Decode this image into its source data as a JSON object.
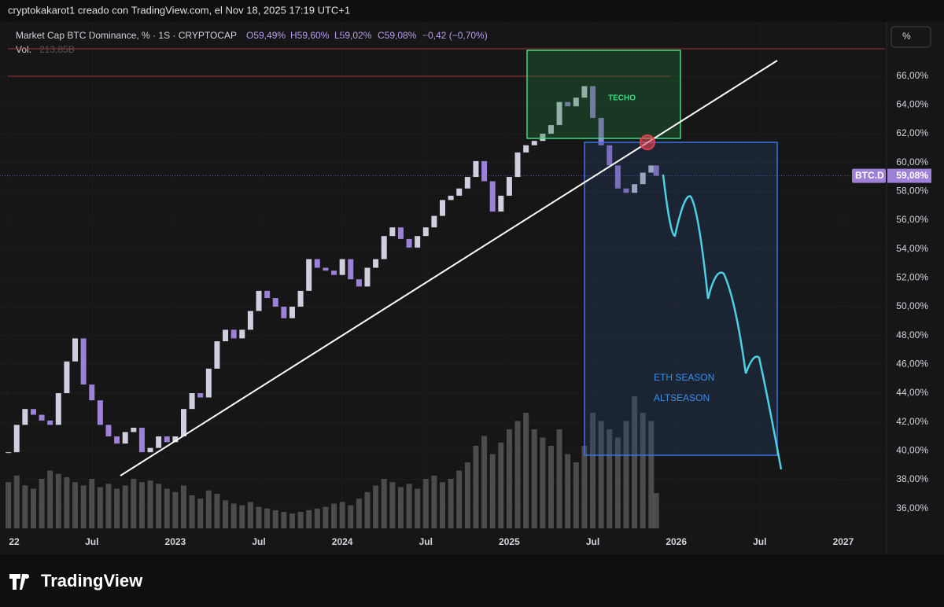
{
  "header": {
    "author": "cryptokakarot1 creado con TradingView.com, el Nov 18, 2025 17:19 UTC+1",
    "symbol": "Market Cap BTC Dominance, % · 1S · CRYPTOCAP",
    "open": "O59,49%",
    "high": "H59,60%",
    "low": "L59,02%",
    "close": "C59,08%",
    "change": "−0,42 (−0,70%)",
    "vol_label": "Vol.",
    "vol_value": "213,85B",
    "scale_button": "%"
  },
  "chart_data": {
    "type": "candlestick",
    "x": [
      2022.0,
      2022.05,
      2022.1,
      2022.15,
      2022.2,
      2022.25,
      2022.3,
      2022.35,
      2022.4,
      2022.45,
      2022.5,
      2022.55,
      2022.6,
      2022.65,
      2022.7,
      2022.75,
      2022.8,
      2022.85,
      2022.9,
      2022.95,
      2023.0,
      2023.05,
      2023.1,
      2023.15,
      2023.2,
      2023.25,
      2023.3,
      2023.35,
      2023.4,
      2023.45,
      2023.5,
      2023.55,
      2023.6,
      2023.65,
      2023.7,
      2023.75,
      2023.8,
      2023.85,
      2023.9,
      2023.95,
      2024.0,
      2024.05,
      2024.1,
      2024.15,
      2024.2,
      2024.25,
      2024.3,
      2024.35,
      2024.4,
      2024.45,
      2024.5,
      2024.55,
      2024.6,
      2024.65,
      2024.7,
      2024.75,
      2024.8,
      2024.85,
      2024.9,
      2024.95,
      2025.0,
      2025.05,
      2025.1,
      2025.15,
      2025.2,
      2025.25,
      2025.3,
      2025.35,
      2025.4,
      2025.45,
      2025.5,
      2025.55,
      2025.6,
      2025.65,
      2025.7,
      2025.75,
      2025.8,
      2025.85,
      2025.88
    ],
    "series": [
      {
        "name": "BTC.D",
        "value_label": "59,08%",
        "up_color": "#cfcfe0",
        "down_color": "#9d80d8",
        "values": [
          39.9,
          41.8,
          42.9,
          42.5,
          42.1,
          41.8,
          44.0,
          46.2,
          47.8,
          44.6,
          43.5,
          41.8,
          41.0,
          40.5,
          41.3,
          41.6,
          39.9,
          40.2,
          41.0,
          40.6,
          41.0,
          42.9,
          44.0,
          43.7,
          45.7,
          47.6,
          48.4,
          47.8,
          48.4,
          49.7,
          51.1,
          50.6,
          50.0,
          49.2,
          50.0,
          51.1,
          53.3,
          52.7,
          52.5,
          52.2,
          53.3,
          51.9,
          51.4,
          52.7,
          53.3,
          54.9,
          55.5,
          54.7,
          54.1,
          54.9,
          55.5,
          56.3,
          57.4,
          57.7,
          58.2,
          59.0,
          60.1,
          58.7,
          56.6,
          57.7,
          59.0,
          60.7,
          61.2,
          61.5,
          62.0,
          62.6,
          64.2,
          63.9,
          64.5,
          65.3,
          63.1,
          61.2,
          59.8,
          58.2,
          57.9,
          58.5,
          59.3,
          59.8,
          59.08
        ]
      },
      {
        "name": "Vol.",
        "color": "#5a5a5a",
        "axis": "y2",
        "values": [
          280,
          320,
          260,
          240,
          300,
          350,
          330,
          310,
          280,
          260,
          300,
          250,
          270,
          240,
          260,
          300,
          280,
          290,
          270,
          240,
          220,
          260,
          200,
          180,
          230,
          210,
          170,
          150,
          140,
          160,
          130,
          120,
          110,
          100,
          90,
          100,
          110,
          120,
          130,
          150,
          160,
          140,
          180,
          220,
          260,
          300,
          280,
          250,
          270,
          240,
          300,
          320,
          280,
          300,
          350,
          400,
          500,
          560,
          450,
          520,
          600,
          650,
          700,
          600,
          550,
          500,
          600,
          450,
          400,
          500,
          700,
          650,
          600,
          550,
          650,
          800,
          700,
          650,
          213.85
        ]
      }
    ],
    "xlim": [
      2021.95,
      2027.25
    ],
    "xticks": [
      {
        "value": 2022,
        "label": "22"
      },
      {
        "value": 2022.5,
        "label": "Jul"
      },
      2023,
      {
        "value": 2023.5,
        "label": "Jul"
      },
      2024,
      {
        "value": 2024.5,
        "label": "Jul"
      },
      2025,
      {
        "value": 2025.5,
        "label": "Jul"
      },
      2026,
      {
        "value": 2026.5,
        "label": "Jul"
      },
      2027
    ],
    "ylim": [
      35,
      69.75
    ],
    "yticks": [
      {
        "value": 36,
        "label": "36,00%"
      },
      {
        "value": 38,
        "label": "38,00%"
      },
      {
        "value": 40,
        "label": "40,00%"
      },
      {
        "value": 42,
        "label": "42,00%"
      },
      {
        "value": 44,
        "label": "44,00%"
      },
      {
        "value": 46,
        "label": "46,00%"
      },
      {
        "value": 48,
        "label": "48,00%"
      },
      {
        "value": 50,
        "label": "50,00%"
      },
      {
        "value": 52,
        "label": "52,00%"
      },
      {
        "value": 54,
        "label": "54,00%"
      },
      {
        "value": 56,
        "label": "56,00%"
      },
      {
        "value": 58,
        "label": "58,00%"
      },
      {
        "value": 60,
        "label": "60,00%"
      },
      {
        "value": 62,
        "label": "62,00%"
      },
      {
        "value": 64,
        "label": "64,00%"
      },
      {
        "value": 66,
        "label": "66,00%"
      }
    ],
    "y2lim": [
      0,
      1200
    ],
    "annotations": {
      "top": "TECHO",
      "eth": "ETH SEASON",
      "alt": "ALTSEASON"
    }
  },
  "footer": {
    "brand": "TradingView"
  }
}
